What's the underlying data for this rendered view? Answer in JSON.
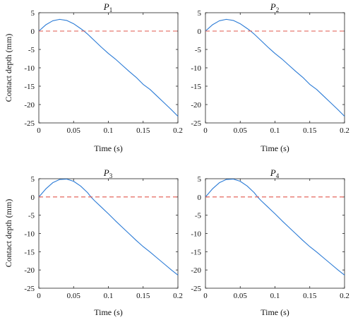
{
  "chart_data": [
    {
      "type": "line",
      "title_base": "P",
      "title_sub": "1",
      "xlabel": "Time (s)",
      "ylabel": "Contact depth (mm)",
      "xlim": [
        0,
        0.2
      ],
      "ylim": [
        -25,
        5
      ],
      "xticks": [
        "0",
        "0.05",
        "0.1",
        "0.15",
        "0.2"
      ],
      "yticks": [
        "5",
        "0",
        "-5",
        "-10",
        "-15",
        "-20",
        "-25"
      ],
      "series": [
        {
          "color": "#2b7bd6",
          "style": "solid",
          "x": [
            0,
            0.01,
            0.02,
            0.03,
            0.04,
            0.05,
            0.06,
            0.065,
            0.07,
            0.08,
            0.09,
            0.1,
            0.11,
            0.12,
            0.13,
            0.14,
            0.15,
            0.16,
            0.17,
            0.18,
            0.19,
            0.2
          ],
          "y": [
            0,
            1.7,
            2.8,
            3.2,
            2.9,
            2.0,
            0.7,
            0.0,
            -0.8,
            -2.6,
            -4.4,
            -6.1,
            -7.6,
            -9.3,
            -11.0,
            -12.6,
            -14.5,
            -15.9,
            -17.7,
            -19.5,
            -21.3,
            -23.2
          ]
        },
        {
          "color": "#e2574c",
          "style": "dashed",
          "x": [
            0,
            0.2
          ],
          "y": [
            0,
            0
          ]
        }
      ]
    },
    {
      "type": "line",
      "title_base": "P",
      "title_sub": "2",
      "xlabel": "Time (s)",
      "ylabel": "",
      "xlim": [
        0,
        0.2
      ],
      "ylim": [
        -25,
        5
      ],
      "xticks": [
        "0",
        "0.05",
        "0.1",
        "0.15",
        "0.2"
      ],
      "yticks": [
        "5",
        "0",
        "-5",
        "-10",
        "-15",
        "-20",
        "-25"
      ],
      "series": [
        {
          "color": "#2b7bd6",
          "style": "solid",
          "x": [
            0,
            0.01,
            0.02,
            0.03,
            0.04,
            0.05,
            0.06,
            0.065,
            0.07,
            0.08,
            0.09,
            0.1,
            0.11,
            0.12,
            0.13,
            0.14,
            0.15,
            0.16,
            0.17,
            0.18,
            0.19,
            0.2
          ],
          "y": [
            0,
            1.7,
            2.8,
            3.2,
            2.9,
            2.0,
            0.7,
            0.0,
            -0.8,
            -2.6,
            -4.4,
            -6.1,
            -7.6,
            -9.3,
            -11.0,
            -12.6,
            -14.5,
            -15.9,
            -17.7,
            -19.5,
            -21.3,
            -23.2
          ]
        },
        {
          "color": "#e2574c",
          "style": "dashed",
          "x": [
            0,
            0.2
          ],
          "y": [
            0,
            0
          ]
        }
      ]
    },
    {
      "type": "line",
      "title_base": "P",
      "title_sub": "3",
      "xlabel": "Time (s)",
      "ylabel": "Contact depth (mm)",
      "xlim": [
        0,
        0.2
      ],
      "ylim": [
        -25,
        5
      ],
      "xticks": [
        "0",
        "0.05",
        "0.1",
        "0.15",
        "0.2"
      ],
      "yticks": [
        "5",
        "0",
        "-5",
        "-10",
        "-15",
        "-20",
        "-25"
      ],
      "series": [
        {
          "color": "#2b7bd6",
          "style": "solid",
          "x": [
            0,
            0.01,
            0.02,
            0.03,
            0.04,
            0.05,
            0.06,
            0.07,
            0.075,
            0.08,
            0.09,
            0.1,
            0.11,
            0.12,
            0.13,
            0.14,
            0.15,
            0.16,
            0.17,
            0.18,
            0.19,
            0.2
          ],
          "y": [
            0,
            2.2,
            3.9,
            4.8,
            4.9,
            4.3,
            3.0,
            1.2,
            0.0,
            -1.0,
            -2.8,
            -4.6,
            -6.5,
            -8.3,
            -10.1,
            -11.9,
            -13.6,
            -15.1,
            -16.7,
            -18.3,
            -19.9,
            -21.4
          ]
        },
        {
          "color": "#e2574c",
          "style": "dashed",
          "x": [
            0,
            0.2
          ],
          "y": [
            0,
            0
          ]
        }
      ]
    },
    {
      "type": "line",
      "title_base": "P",
      "title_sub": "4",
      "xlabel": "Time (s)",
      "ylabel": "",
      "xlim": [
        0,
        0.2
      ],
      "ylim": [
        -25,
        5
      ],
      "xticks": [
        "0",
        "0.05",
        "0.1",
        "0.15",
        "0.2"
      ],
      "yticks": [
        "5",
        "0",
        "-5",
        "-10",
        "-15",
        "-20",
        "-25"
      ],
      "series": [
        {
          "color": "#2b7bd6",
          "style": "solid",
          "x": [
            0,
            0.01,
            0.02,
            0.03,
            0.04,
            0.05,
            0.06,
            0.07,
            0.075,
            0.08,
            0.09,
            0.1,
            0.11,
            0.12,
            0.13,
            0.14,
            0.15,
            0.16,
            0.17,
            0.18,
            0.19,
            0.2
          ],
          "y": [
            0,
            2.2,
            3.9,
            4.8,
            4.9,
            4.3,
            3.0,
            1.2,
            0.0,
            -1.0,
            -2.8,
            -4.6,
            -6.5,
            -8.3,
            -10.1,
            -11.9,
            -13.6,
            -15.1,
            -16.7,
            -18.3,
            -19.9,
            -21.4
          ]
        },
        {
          "color": "#e2574c",
          "style": "dashed",
          "x": [
            0,
            0.2
          ],
          "y": [
            0,
            0
          ]
        }
      ]
    }
  ]
}
